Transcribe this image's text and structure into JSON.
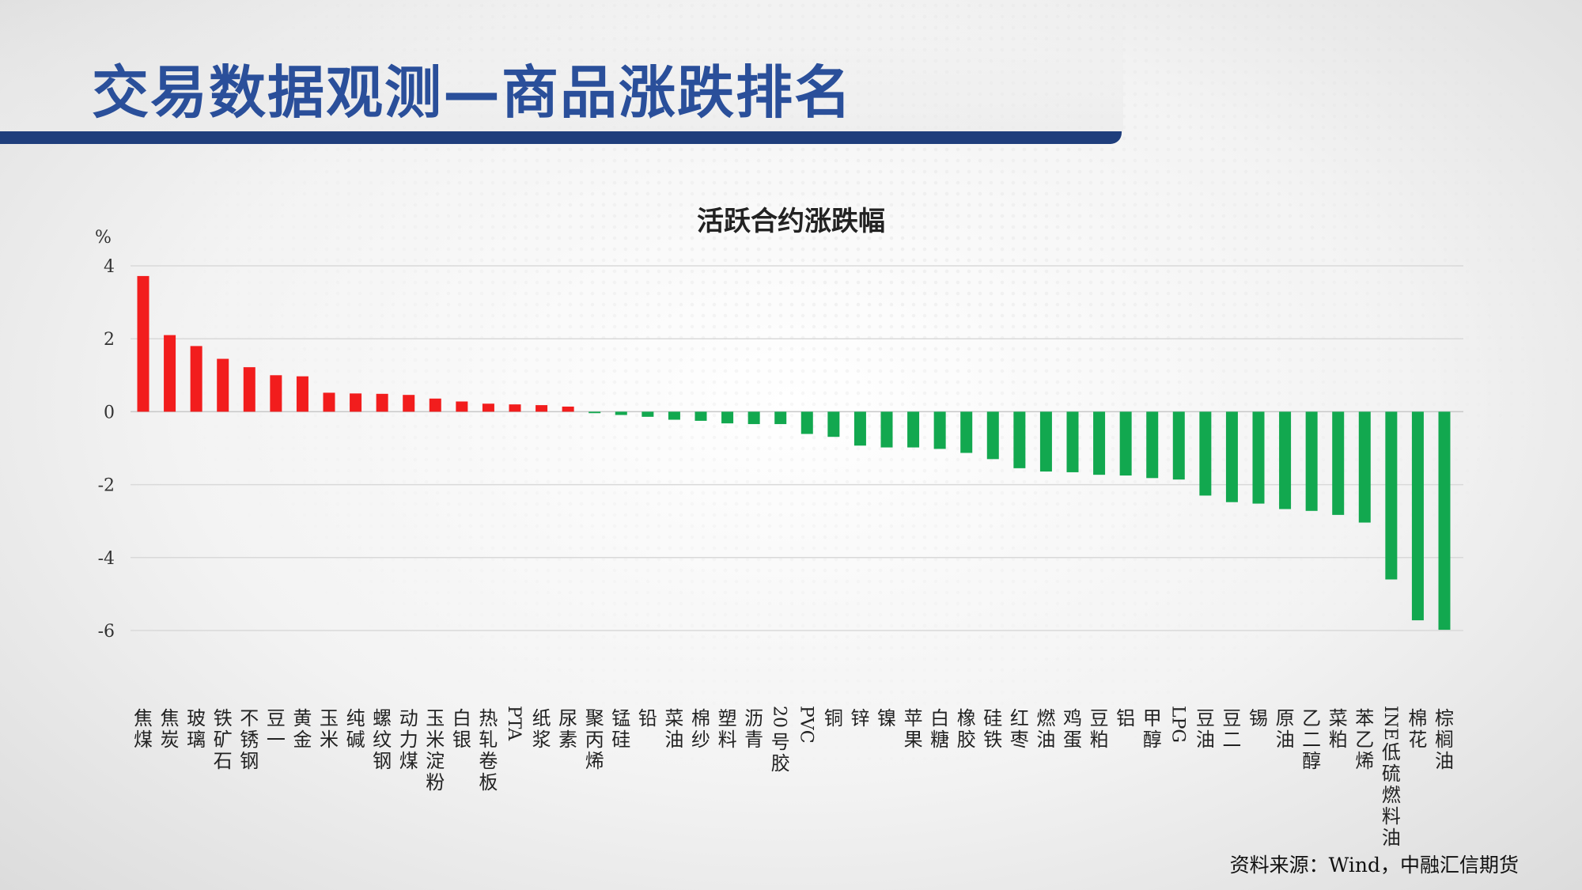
{
  "header": {
    "title": "交易数据观测—商品涨跌排名",
    "accent_color": "#1f3e7c",
    "title_color": "#2a4f9a"
  },
  "source": "资料来源：Wind，中融汇信期货",
  "chart_data": {
    "type": "bar",
    "title": "活跃合约涨跌幅",
    "ylabel": "%",
    "ylim": [
      -6,
      4
    ],
    "yticks": [
      4,
      2,
      0,
      -2,
      -4,
      -6
    ],
    "grid": true,
    "positive_color": "#f21d1d",
    "negative_color": "#12a84f",
    "categories": [
      "焦煤",
      "焦炭",
      "玻璃",
      "铁矿石",
      "不锈钢",
      "豆一",
      "黄金",
      "玉米",
      "纯碱",
      "螺纹钢",
      "动力煤",
      "玉米淀粉",
      "白银",
      "热轧卷板",
      "PTA",
      "纸浆",
      "尿素",
      "聚丙烯",
      "锰硅",
      "铅",
      "菜油",
      "棉纱",
      "塑料",
      "沥青",
      "20号胶",
      "PVC",
      "铜",
      "锌",
      "镍",
      "苹果",
      "白糖",
      "橡胶",
      "硅铁",
      "红枣",
      "燃油",
      "鸡蛋",
      "豆粕",
      "铝",
      "甲醇",
      "LPG",
      "豆油",
      "豆二",
      "锡",
      "原油",
      "乙二醇",
      "菜粕",
      "苯乙烯",
      "INE低硫燃料油",
      "棉花",
      "棕榈油"
    ],
    "values": [
      3.72,
      2.1,
      1.8,
      1.45,
      1.22,
      1.0,
      0.97,
      0.52,
      0.5,
      0.49,
      0.46,
      0.36,
      0.28,
      0.22,
      0.2,
      0.18,
      0.14,
      -0.04,
      -0.09,
      -0.14,
      -0.22,
      -0.25,
      -0.32,
      -0.34,
      -0.34,
      -0.61,
      -0.69,
      -0.93,
      -0.98,
      -0.98,
      -1.02,
      -1.13,
      -1.3,
      -1.55,
      -1.64,
      -1.66,
      -1.73,
      -1.75,
      -1.82,
      -1.86,
      -2.3,
      -2.48,
      -2.52,
      -2.67,
      -2.72,
      -2.83,
      -3.04,
      -4.6,
      -5.72,
      -5.98
    ]
  }
}
